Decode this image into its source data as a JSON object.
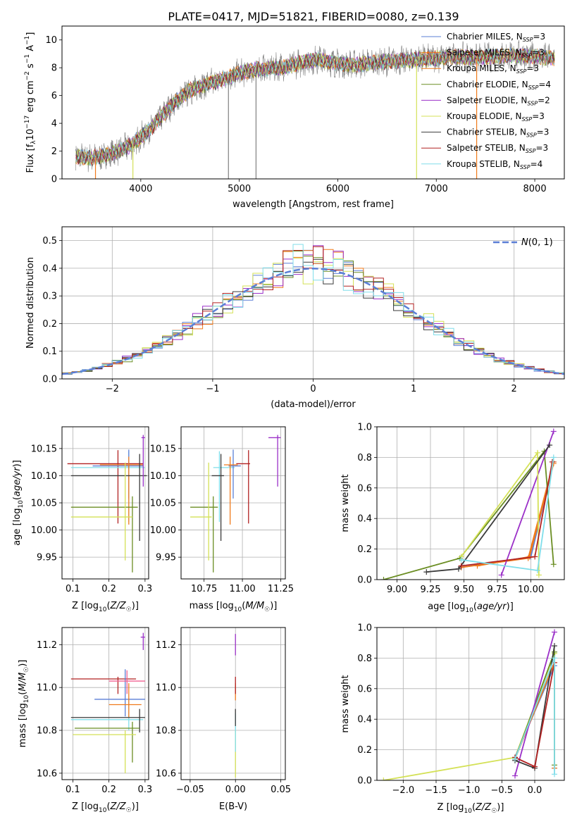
{
  "figure": {
    "title": "PLATE=0417, MJD=51821, FIBERID=0080, z=0.139",
    "palette": [
      "#5b7fd6",
      "#f07a1c",
      "#6b8e23",
      "#9b30c8",
      "#d4e157",
      "#3a3a3a",
      "#b22222",
      "#80deea",
      "#808080"
    ]
  },
  "chart_data": [
    {
      "id": "spectrum",
      "type": "line",
      "xlabel": "wavelength [Angstrom, rest frame]",
      "ylabel": "Flux [f_λ 10^-17 erg cm^-2 s^-1 A^-1]",
      "xlim": [
        3200,
        8300
      ],
      "ylim": [
        0,
        11
      ],
      "xticks": [
        4000,
        5000,
        6000,
        7000,
        8000
      ],
      "yticks": [
        0,
        2,
        4,
        6,
        8,
        10
      ],
      "grid": false,
      "legend": "top-right",
      "data_series": {
        "name": "data",
        "color": "#808080"
      },
      "continuum": {
        "x": [
          3340,
          3500,
          3700,
          3900,
          4100,
          4300,
          4500,
          4800,
          5000,
          5200,
          5400,
          5600,
          5800,
          6000,
          6200,
          6400,
          6600,
          6800,
          7000,
          7200,
          7400,
          7600,
          7800,
          8000,
          8200
        ],
        "y": [
          1.6,
          1.5,
          1.8,
          2.4,
          3.6,
          5.2,
          6.4,
          7.1,
          7.6,
          7.9,
          8.0,
          8.3,
          8.6,
          8.3,
          8.2,
          8.4,
          8.5,
          8.6,
          8.7,
          8.8,
          8.7,
          8.8,
          8.9,
          8.8,
          8.7
        ]
      },
      "series": [
        {
          "name": "Chabrier MILES, N_SSP=3",
          "color": "#5b7fd6"
        },
        {
          "name": "Salpeter MILES, N_SSP=3",
          "color": "#f07a1c"
        },
        {
          "name": "Kroupa MILES, N_SSP=3",
          "color": "#f07a1c"
        },
        {
          "name": "Chabrier ELODIE, N_SSP=4",
          "color": "#6b8e23"
        },
        {
          "name": "Salpeter ELODIE, N_SSP=2",
          "color": "#9b30c8"
        },
        {
          "name": "Kroupa ELODIE, N_SSP=3",
          "color": "#d4e157"
        },
        {
          "name": "Chabrier STELIB, N_SSP=3",
          "color": "#3a3a3a"
        },
        {
          "name": "Salpeter STELIB, N_SSP=3",
          "color": "#b22222"
        },
        {
          "name": "Kroupa STELIB, N_SSP=4",
          "color": "#80deea"
        }
      ],
      "legend_labels": [
        {
          "pre": "Chabrier MILES, N",
          "sub": "SSP",
          "post": "=3"
        },
        {
          "pre": "Salpeter MILES, N",
          "sub": "SSP",
          "post": "=3"
        },
        {
          "pre": "Kroupa MILES, N",
          "sub": "SSP",
          "post": "=3"
        },
        {
          "pre": "Chabrier ELODIE, N",
          "sub": "SSP",
          "post": "=4"
        },
        {
          "pre": "Salpeter ELODIE, N",
          "sub": "SSP",
          "post": "=2"
        },
        {
          "pre": "Kroupa ELODIE, N",
          "sub": "SSP",
          "post": "=3"
        },
        {
          "pre": "Chabrier STELIB, N",
          "sub": "SSP",
          "post": "=3"
        },
        {
          "pre": "Salpeter STELIB, N",
          "sub": "SSP",
          "post": "=3"
        },
        {
          "pre": "Kroupa STELIB, N",
          "sub": "SSP",
          "post": "=4"
        }
      ]
    },
    {
      "id": "residuals",
      "type": "histogram",
      "xlabel": "(data-model)/error",
      "ylabel": "Normed distribution",
      "xlim": [
        -2.5,
        2.5
      ],
      "ylim": [
        0,
        0.55
      ],
      "xticks": [
        -2,
        -1,
        0,
        1,
        2
      ],
      "yticks": [
        0.0,
        0.1,
        0.2,
        0.3,
        0.4,
        0.5
      ],
      "grid": true,
      "legend": "top-right",
      "reference": {
        "name": "N(0,1)",
        "color": "#5b7fd6"
      },
      "bin_width": 0.1,
      "bins_start": -2.5
    },
    {
      "id": "age_vs_Z",
      "type": "errorbar",
      "xlabel": "Z [log10(Z/Z☉)]",
      "ylabel": "age [log10(age/yr)]",
      "xlim": [
        0.07,
        0.31
      ],
      "ylim": [
        9.91,
        10.19
      ],
      "xticks": [
        0.1,
        0.2,
        0.3
      ],
      "yticks": [
        9.95,
        10.0,
        10.05,
        10.1,
        10.15
      ],
      "grid": true,
      "points": [
        {
          "color": "#b22222",
          "x": 0.225,
          "xerr": [
            0.14,
            0.07
          ],
          "y": 10.122,
          "yerr": [
            0.11,
            0.025
          ]
        },
        {
          "color": "#80deea",
          "x": 0.255,
          "xerr": [
            0.16,
            0.045
          ],
          "y": 10.115,
          "yerr": [
            0.1,
            0.03
          ]
        },
        {
          "color": "#5b7fd6",
          "x": 0.255,
          "xerr": [
            0.1,
            0.04
          ],
          "y": 10.118,
          "yerr": [
            0.06,
            0.03
          ]
        },
        {
          "color": "#f07a1c",
          "x": 0.255,
          "xerr": [
            0.08,
            0.04
          ],
          "y": 10.12,
          "yerr": [
            0.11,
            0.015
          ]
        },
        {
          "color": "#3a3a3a",
          "x": 0.285,
          "xerr": [
            0.19,
            0.02
          ],
          "y": 10.1,
          "yerr": [
            0.12,
            0.04
          ]
        },
        {
          "color": "#6b8e23",
          "x": 0.265,
          "xerr": [
            0.17,
            0.015
          ],
          "y": 10.042,
          "yerr": [
            0.12,
            0.02
          ]
        },
        {
          "color": "#d4e157",
          "x": 0.245,
          "xerr": [
            0.15,
            0.02
          ],
          "y": 10.024,
          "yerr": [
            0.08,
            0.1
          ]
        },
        {
          "color": "#9b30c8",
          "x": 0.295,
          "xerr": [
            0.005,
            0.005
          ],
          "y": 10.17,
          "yerr": [
            0.09,
            0.005
          ]
        }
      ]
    },
    {
      "id": "age_vs_mass",
      "type": "errorbar",
      "xlabel": "mass [log10(M/M☉)]",
      "ylabel": "",
      "xlim": [
        10.6,
        11.28
      ],
      "ylim": [
        9.91,
        10.19
      ],
      "xticks": [
        10.75,
        11.0,
        11.25
      ],
      "yticks": [
        9.95,
        10.0,
        10.05,
        10.1,
        10.15
      ],
      "grid": true,
      "points": [
        {
          "color": "#b22222",
          "x": 11.04,
          "xerr": [
            0.08,
            0.01
          ],
          "y": 10.122,
          "yerr": [
            0.11,
            0.025
          ]
        },
        {
          "color": "#80deea",
          "x": 10.85,
          "xerr": [
            0.04,
            0.1
          ],
          "y": 10.115,
          "yerr": [
            0.1,
            0.03
          ]
        },
        {
          "color": "#5b7fd6",
          "x": 10.94,
          "xerr": [
            0.03,
            0.05
          ],
          "y": 10.118,
          "yerr": [
            0.06,
            0.03
          ]
        },
        {
          "color": "#f07a1c",
          "x": 10.92,
          "xerr": [
            0.04,
            0.05
          ],
          "y": 10.12,
          "yerr": [
            0.11,
            0.015
          ]
        },
        {
          "color": "#3a3a3a",
          "x": 10.86,
          "xerr": [
            0.06,
            0.02
          ],
          "y": 10.1,
          "yerr": [
            0.12,
            0.04
          ]
        },
        {
          "color": "#6b8e23",
          "x": 10.81,
          "xerr": [
            0.15,
            0.03
          ],
          "y": 10.042,
          "yerr": [
            0.12,
            0.02
          ]
        },
        {
          "color": "#d4e157",
          "x": 10.78,
          "xerr": [
            0.12,
            0.02
          ],
          "y": 10.024,
          "yerr": [
            0.08,
            0.1
          ]
        },
        {
          "color": "#9b30c8",
          "x": 11.23,
          "xerr": [
            0.06,
            0.02
          ],
          "y": 10.17,
          "yerr": [
            0.09,
            0.005
          ]
        }
      ]
    },
    {
      "id": "weight_vs_age",
      "type": "line",
      "xlabel": "age [log10(age/yr)]",
      "ylabel": "mass weight",
      "xlim": [
        8.85,
        10.25
      ],
      "ylim": [
        0,
        1.0
      ],
      "xticks": [
        9.0,
        9.25,
        9.5,
        9.75,
        10.0
      ],
      "yticks": [
        0.0,
        0.2,
        0.4,
        0.6,
        0.8,
        1.0
      ],
      "grid": true,
      "series": [
        {
          "name": "Chabrier MILES",
          "color": "#5b7fd6",
          "x": [
            9.48,
            10.0,
            10.17
          ],
          "y": [
            0.08,
            0.15,
            0.77
          ]
        },
        {
          "name": "Salpeter MILES",
          "color": "#f07a1c",
          "x": [
            9.48,
            9.98,
            10.17
          ],
          "y": [
            0.08,
            0.14,
            0.77
          ]
        },
        {
          "name": "Kroupa MILES",
          "color": "#f07a1c",
          "x": [
            9.6,
            9.99,
            10.17
          ],
          "y": [
            0.09,
            0.15,
            0.76
          ]
        },
        {
          "name": "Chabrier ELODIE",
          "color": "#6b8e23",
          "x": [
            8.9,
            9.47,
            10.1,
            10.17
          ],
          "y": [
            0.0,
            0.14,
            0.84,
            0.1
          ]
        },
        {
          "name": "Salpeter ELODIE",
          "color": "#9b30c8",
          "x": [
            9.78,
            10.17
          ],
          "y": [
            0.03,
            0.97
          ]
        },
        {
          "name": "Kroupa ELODIE",
          "color": "#d4e157",
          "x": [
            9.48,
            10.05,
            10.06
          ],
          "y": [
            0.15,
            0.83,
            0.03
          ]
        },
        {
          "name": "Chabrier STELIB",
          "color": "#3a3a3a",
          "x": [
            9.22,
            9.46,
            10.14
          ],
          "y": [
            0.05,
            0.07,
            0.88
          ]
        },
        {
          "name": "Salpeter STELIB",
          "color": "#b22222",
          "x": [
            9.48,
            10.03,
            10.16
          ],
          "y": [
            0.09,
            0.15,
            0.77
          ]
        },
        {
          "name": "Kroupa STELIB",
          "color": "#80deea",
          "x": [
            9.48,
            10.05,
            10.17
          ],
          "y": [
            0.13,
            0.06,
            0.8
          ]
        }
      ]
    },
    {
      "id": "mass_vs_Z",
      "type": "errorbar",
      "xlabel": "Z [log10(Z/Z☉)]",
      "ylabel": "mass [log10(M/M☉)]",
      "xlim": [
        0.07,
        0.31
      ],
      "ylim": [
        10.57,
        11.28
      ],
      "xticks": [
        0.1,
        0.2,
        0.3
      ],
      "yticks": [
        10.6,
        10.8,
        11.0,
        11.2
      ],
      "grid": true,
      "points": [
        {
          "color": "#b22222",
          "x": 0.225,
          "xerr": [
            0.13,
            0.05
          ],
          "y": 11.04,
          "yerr": [
            0.07,
            0.01
          ]
        },
        {
          "color": "#80deea",
          "x": 0.255,
          "xerr": [
            0.16,
            0.04
          ],
          "y": 10.85,
          "yerr": [
            0.05,
            0.1
          ]
        },
        {
          "color": "#5b7fd6",
          "x": 0.245,
          "xerr": [
            0.085,
            0.055
          ],
          "y": 10.945,
          "yerr": [
            0.08,
            0.14
          ]
        },
        {
          "color": "#f07a1c",
          "x": 0.255,
          "xerr": [
            0.055,
            0.035
          ],
          "y": 10.92,
          "yerr": [
            0.06,
            0.1
          ]
        },
        {
          "color": "#3a3a3a",
          "x": 0.285,
          "xerr": [
            0.19,
            0.015
          ],
          "y": 10.86,
          "yerr": [
            0.07,
            0.04
          ]
        },
        {
          "color": "#6b8e23",
          "x": 0.265,
          "xerr": [
            0.16,
            0.02
          ],
          "y": 10.81,
          "yerr": [
            0.16,
            0.03
          ]
        },
        {
          "color": "#d4e157",
          "x": 0.245,
          "xerr": [
            0.145,
            0.03
          ],
          "y": 10.78,
          "yerr": [
            0.18,
            0.02
          ]
        },
        {
          "color": "#f06292",
          "x": 0.25,
          "xerr": [
            0.05,
            0.05
          ],
          "y": 11.03,
          "yerr": [
            0.06,
            0.05
          ]
        },
        {
          "color": "#9b30c8",
          "x": 0.295,
          "xerr": [
            0.007,
            0.005
          ],
          "y": 11.235,
          "yerr": [
            0.06,
            0.02
          ]
        }
      ]
    },
    {
      "id": "mass_vs_ebv",
      "type": "errorbar",
      "xlabel": "E(B-V)",
      "ylabel": "",
      "xlim": [
        -0.06,
        0.055
      ],
      "ylim": [
        10.57,
        11.28
      ],
      "xticks": [
        -0.05,
        0.0,
        0.05
      ],
      "yticks": [
        10.6,
        10.8,
        11.0,
        11.2
      ],
      "grid": true,
      "points": [
        {
          "color": "#d4e157",
          "x": 0.0,
          "y": 10.7,
          "yerr": [
            0.12,
            0.1
          ]
        },
        {
          "color": "#80deea",
          "x": 0.0,
          "y": 10.8,
          "yerr": [
            0.1,
            0.08
          ]
        },
        {
          "color": "#3a3a3a",
          "x": 0.0,
          "y": 10.86,
          "yerr": [
            0.04,
            0.04
          ]
        },
        {
          "color": "#f07a1c",
          "x": 0.0,
          "y": 10.98,
          "yerr": [
            0.04,
            0.04
          ]
        },
        {
          "color": "#b22222",
          "x": 0.0,
          "y": 11.0,
          "yerr": [
            0.03,
            0.05
          ]
        },
        {
          "color": "#9b30c8",
          "x": 0.0,
          "y": 11.2,
          "yerr": [
            0.05,
            0.05
          ]
        }
      ]
    },
    {
      "id": "weight_vs_Z",
      "type": "line",
      "xlabel": "Z [log10(Z/Z☉)]",
      "ylabel": "mass weight",
      "xlim": [
        -2.4,
        0.45
      ],
      "ylim": [
        0,
        1.0
      ],
      "xticks": [
        -2.0,
        -1.5,
        -1.0,
        -0.5,
        0.0
      ],
      "yticks": [
        0.0,
        0.2,
        0.4,
        0.6,
        0.8,
        1.0
      ],
      "grid": true,
      "series": [
        {
          "name": "Kroupa ELODIE",
          "color": "#d4e157",
          "x": [
            -2.3,
            -0.3,
            0.3
          ],
          "y": [
            0.0,
            0.15,
            0.83
          ]
        },
        {
          "name": "Chabrier MILES",
          "color": "#5b7fd6",
          "x": [
            -0.3,
            0.3,
            0.3
          ],
          "y": [
            0.15,
            0.75,
            0.08
          ]
        },
        {
          "name": "Salpeter MILES",
          "color": "#f07a1c",
          "x": [
            -0.3,
            0.3,
            0.3
          ],
          "y": [
            0.14,
            0.77,
            0.08
          ]
        },
        {
          "name": "Chabrier ELODIE",
          "color": "#6b8e23",
          "x": [
            -0.3,
            0.3,
            0.3
          ],
          "y": [
            0.14,
            0.84,
            0.1
          ]
        },
        {
          "name": "Salpeter ELODIE",
          "color": "#9b30c8",
          "x": [
            -0.3,
            0.3
          ],
          "y": [
            0.03,
            0.97
          ]
        },
        {
          "name": "Chabrier STELIB",
          "color": "#3a3a3a",
          "x": [
            -0.3,
            0.0,
            0.3
          ],
          "y": [
            0.13,
            0.08,
            0.88
          ]
        },
        {
          "name": "Salpeter STELIB",
          "color": "#b22222",
          "x": [
            -0.3,
            0.0,
            0.3
          ],
          "y": [
            0.15,
            0.09,
            0.77
          ]
        },
        {
          "name": "Kroupa STELIB",
          "color": "#80deea",
          "x": [
            -0.3,
            0.3,
            0.3
          ],
          "y": [
            0.14,
            0.8,
            0.04
          ]
        }
      ]
    }
  ]
}
